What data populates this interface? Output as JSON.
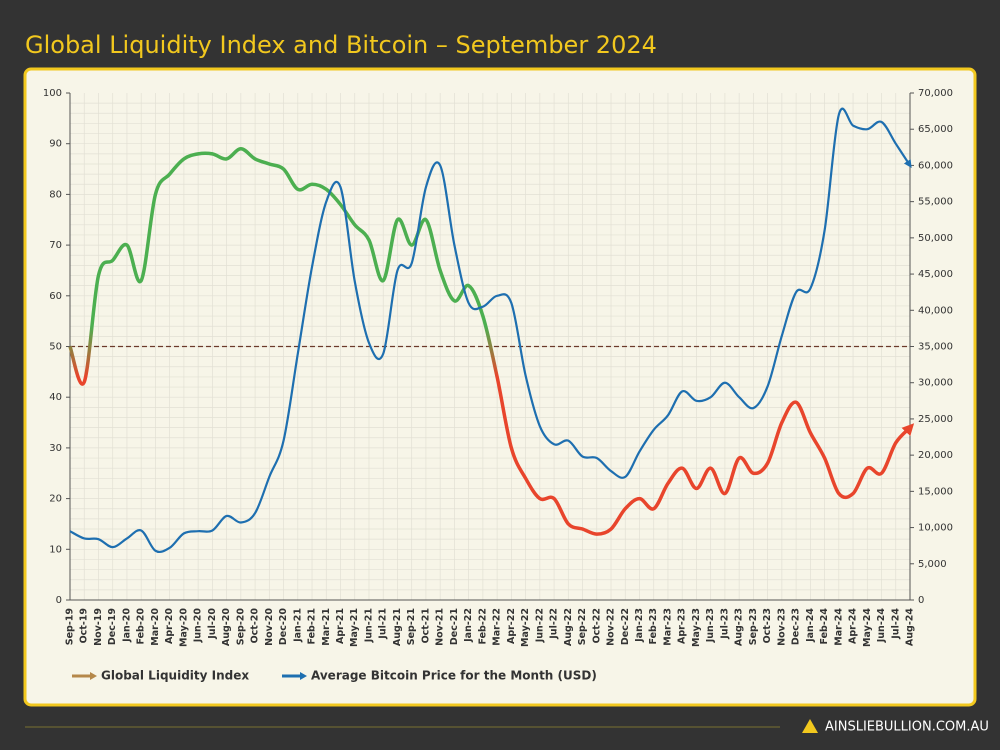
{
  "chart_data": {
    "type": "line",
    "title": "Global Liquidity Index and Bitcoin – September 2024",
    "categories": [
      "Sep-19",
      "Oct-19",
      "Nov-19",
      "Dec-19",
      "Jan-20",
      "Feb-20",
      "Mar-20",
      "Apr-20",
      "May-20",
      "Jun-20",
      "Jul-20",
      "Aug-20",
      "Sep-20",
      "Oct-20",
      "Nov-20",
      "Dec-20",
      "Jan-21",
      "Feb-21",
      "Mar-21",
      "Apr-21",
      "May-21",
      "Jun-21",
      "Jul-21",
      "Aug-21",
      "Sep-21",
      "Oct-21",
      "Nov-21",
      "Dec-21",
      "Jan-22",
      "Feb-22",
      "Mar-22",
      "Apr-22",
      "May-22",
      "Jun-22",
      "Jul-22",
      "Aug-22",
      "Sep-22",
      "Oct-22",
      "Nov-22",
      "Dec-22",
      "Jan-23",
      "Feb-23",
      "Mar-23",
      "Apr-23",
      "May-23",
      "Jun-23",
      "Jul-23",
      "Aug-23",
      "Sep-23",
      "Oct-23",
      "Nov-23",
      "Dec-23",
      "Jan-24",
      "Feb-24",
      "Mar-24",
      "Apr-24",
      "May-24",
      "Jun-24",
      "Jul-24",
      "Aug-24"
    ],
    "series": [
      {
        "name": "Global Liquidity Index",
        "color": "#b5884a",
        "color_above": "#4caf50",
        "color_below": "#e8452c",
        "values": [
          50,
          43,
          64,
          67,
          70,
          63,
          80,
          84,
          87,
          88,
          88,
          87,
          89,
          87,
          86,
          85,
          81,
          82,
          81,
          78,
          74,
          71,
          63,
          75,
          70,
          75,
          65,
          59,
          62,
          56,
          44,
          30,
          24,
          20,
          20,
          15,
          14,
          13,
          14,
          18,
          20,
          18,
          23,
          26,
          22,
          26,
          21,
          28,
          25,
          27,
          35,
          39,
          33,
          28,
          21,
          21,
          26,
          25,
          31,
          34
        ]
      },
      {
        "name": "Average Bitcoin Price for the Month (USD)",
        "color": "#1e6fb0",
        "axis": "y2",
        "values": [
          9500,
          8500,
          8400,
          7300,
          8500,
          9600,
          6800,
          7200,
          9200,
          9500,
          9600,
          11600,
          10700,
          12000,
          17000,
          22000,
          34000,
          46000,
          55000,
          57000,
          44000,
          35500,
          34000,
          45500,
          46500,
          57000,
          60000,
          49000,
          41000,
          40500,
          42000,
          41000,
          31000,
          24000,
          21500,
          22000,
          19800,
          19600,
          17800,
          17000,
          20500,
          23500,
          25500,
          28800,
          27500,
          28000,
          30000,
          28000,
          26500,
          29500,
          36500,
          42500,
          43000,
          51000,
          67000,
          65500,
          65000,
          66000,
          63000,
          60000
        ]
      }
    ],
    "reference_line": 50,
    "ylim": [
      0,
      100
    ],
    "yticks": [
      0,
      10,
      20,
      30,
      40,
      50,
      60,
      70,
      80,
      90,
      100
    ],
    "y2lim": [
      0,
      70000
    ],
    "y2ticks": [
      0,
      {
        "value": 5000,
        "label": "5,000"
      },
      {
        "value": 10000,
        "label": "10,000"
      },
      {
        "value": 15000,
        "label": "15,000"
      },
      {
        "value": 20000,
        "label": "20,000"
      },
      {
        "value": 25000,
        "label": "25,000"
      },
      {
        "value": 30000,
        "label": "30,000"
      },
      {
        "value": 35000,
        "label": "35,000"
      },
      {
        "value": 40000,
        "label": "40,000"
      },
      {
        "value": 45000,
        "label": "45,000"
      },
      {
        "value": 50000,
        "label": "50,000"
      },
      {
        "value": 55000,
        "label": "55,000"
      },
      {
        "value": 60000,
        "label": "60,000"
      },
      {
        "value": 65000,
        "label": "65,000"
      },
      {
        "value": 70000,
        "label": "70,000"
      }
    ],
    "grid": true
  },
  "footer": {
    "brand": "AINSLIEBULLION.COM.AU"
  }
}
